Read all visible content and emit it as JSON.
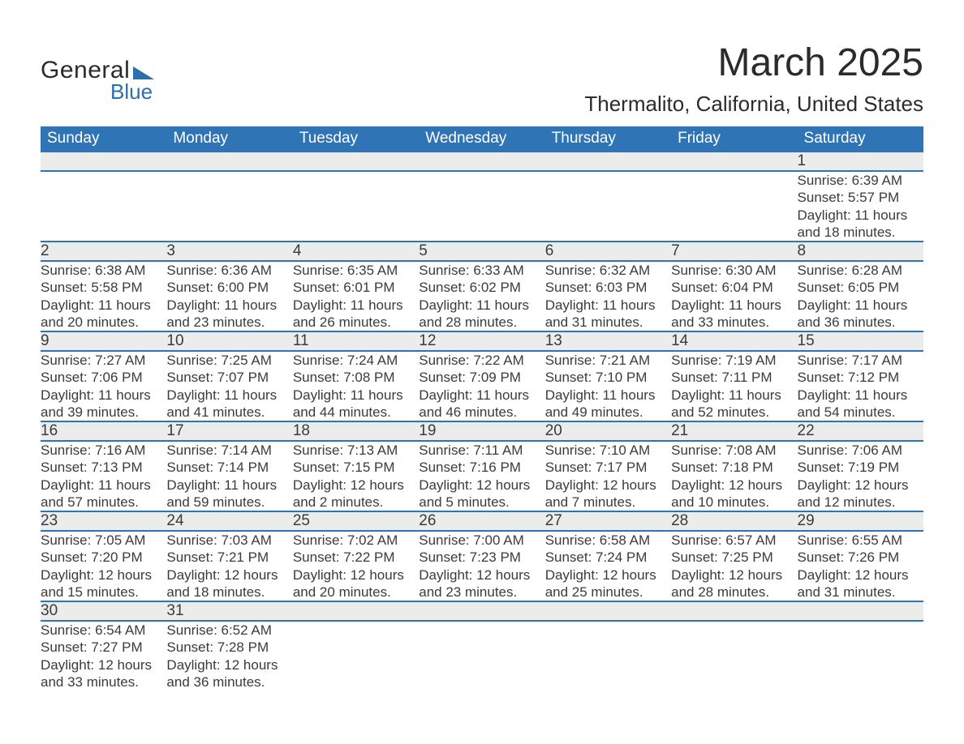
{
  "logo": {
    "word1": "General",
    "word2": "Blue",
    "triangle_color": "#2a6fb0"
  },
  "title": "March 2025",
  "location": "Thermalito, California, United States",
  "colors": {
    "header_bg": "#2f74b5",
    "header_text": "#ffffff",
    "daynum_bg": "#ececec",
    "rule": "#2f74b5",
    "text": "#3b3b3b",
    "background": "#ffffff"
  },
  "typography": {
    "title_fontsize": 48,
    "location_fontsize": 26,
    "header_fontsize": 19,
    "daynum_fontsize": 19,
    "body_fontsize": 17,
    "font_family": "Arial"
  },
  "weekday_headers": [
    "Sunday",
    "Monday",
    "Tuesday",
    "Wednesday",
    "Thursday",
    "Friday",
    "Saturday"
  ],
  "weeks": [
    [
      null,
      null,
      null,
      null,
      null,
      null,
      {
        "n": "1",
        "sunrise": "6:39 AM",
        "sunset": "5:57 PM",
        "daylight": "11 hours and 18 minutes."
      }
    ],
    [
      {
        "n": "2",
        "sunrise": "6:38 AM",
        "sunset": "5:58 PM",
        "daylight": "11 hours and 20 minutes."
      },
      {
        "n": "3",
        "sunrise": "6:36 AM",
        "sunset": "6:00 PM",
        "daylight": "11 hours and 23 minutes."
      },
      {
        "n": "4",
        "sunrise": "6:35 AM",
        "sunset": "6:01 PM",
        "daylight": "11 hours and 26 minutes."
      },
      {
        "n": "5",
        "sunrise": "6:33 AM",
        "sunset": "6:02 PM",
        "daylight": "11 hours and 28 minutes."
      },
      {
        "n": "6",
        "sunrise": "6:32 AM",
        "sunset": "6:03 PM",
        "daylight": "11 hours and 31 minutes."
      },
      {
        "n": "7",
        "sunrise": "6:30 AM",
        "sunset": "6:04 PM",
        "daylight": "11 hours and 33 minutes."
      },
      {
        "n": "8",
        "sunrise": "6:28 AM",
        "sunset": "6:05 PM",
        "daylight": "11 hours and 36 minutes."
      }
    ],
    [
      {
        "n": "9",
        "sunrise": "7:27 AM",
        "sunset": "7:06 PM",
        "daylight": "11 hours and 39 minutes."
      },
      {
        "n": "10",
        "sunrise": "7:25 AM",
        "sunset": "7:07 PM",
        "daylight": "11 hours and 41 minutes."
      },
      {
        "n": "11",
        "sunrise": "7:24 AM",
        "sunset": "7:08 PM",
        "daylight": "11 hours and 44 minutes."
      },
      {
        "n": "12",
        "sunrise": "7:22 AM",
        "sunset": "7:09 PM",
        "daylight": "11 hours and 46 minutes."
      },
      {
        "n": "13",
        "sunrise": "7:21 AM",
        "sunset": "7:10 PM",
        "daylight": "11 hours and 49 minutes."
      },
      {
        "n": "14",
        "sunrise": "7:19 AM",
        "sunset": "7:11 PM",
        "daylight": "11 hours and 52 minutes."
      },
      {
        "n": "15",
        "sunrise": "7:17 AM",
        "sunset": "7:12 PM",
        "daylight": "11 hours and 54 minutes."
      }
    ],
    [
      {
        "n": "16",
        "sunrise": "7:16 AM",
        "sunset": "7:13 PM",
        "daylight": "11 hours and 57 minutes."
      },
      {
        "n": "17",
        "sunrise": "7:14 AM",
        "sunset": "7:14 PM",
        "daylight": "11 hours and 59 minutes."
      },
      {
        "n": "18",
        "sunrise": "7:13 AM",
        "sunset": "7:15 PM",
        "daylight": "12 hours and 2 minutes."
      },
      {
        "n": "19",
        "sunrise": "7:11 AM",
        "sunset": "7:16 PM",
        "daylight": "12 hours and 5 minutes."
      },
      {
        "n": "20",
        "sunrise": "7:10 AM",
        "sunset": "7:17 PM",
        "daylight": "12 hours and 7 minutes."
      },
      {
        "n": "21",
        "sunrise": "7:08 AM",
        "sunset": "7:18 PM",
        "daylight": "12 hours and 10 minutes."
      },
      {
        "n": "22",
        "sunrise": "7:06 AM",
        "sunset": "7:19 PM",
        "daylight": "12 hours and 12 minutes."
      }
    ],
    [
      {
        "n": "23",
        "sunrise": "7:05 AM",
        "sunset": "7:20 PM",
        "daylight": "12 hours and 15 minutes."
      },
      {
        "n": "24",
        "sunrise": "7:03 AM",
        "sunset": "7:21 PM",
        "daylight": "12 hours and 18 minutes."
      },
      {
        "n": "25",
        "sunrise": "7:02 AM",
        "sunset": "7:22 PM",
        "daylight": "12 hours and 20 minutes."
      },
      {
        "n": "26",
        "sunrise": "7:00 AM",
        "sunset": "7:23 PM",
        "daylight": "12 hours and 23 minutes."
      },
      {
        "n": "27",
        "sunrise": "6:58 AM",
        "sunset": "7:24 PM",
        "daylight": "12 hours and 25 minutes."
      },
      {
        "n": "28",
        "sunrise": "6:57 AM",
        "sunset": "7:25 PM",
        "daylight": "12 hours and 28 minutes."
      },
      {
        "n": "29",
        "sunrise": "6:55 AM",
        "sunset": "7:26 PM",
        "daylight": "12 hours and 31 minutes."
      }
    ],
    [
      {
        "n": "30",
        "sunrise": "6:54 AM",
        "sunset": "7:27 PM",
        "daylight": "12 hours and 33 minutes."
      },
      {
        "n": "31",
        "sunrise": "6:52 AM",
        "sunset": "7:28 PM",
        "daylight": "12 hours and 36 minutes."
      },
      null,
      null,
      null,
      null,
      null
    ]
  ],
  "labels": {
    "sunrise": "Sunrise: ",
    "sunset": "Sunset: ",
    "daylight": "Daylight: "
  }
}
